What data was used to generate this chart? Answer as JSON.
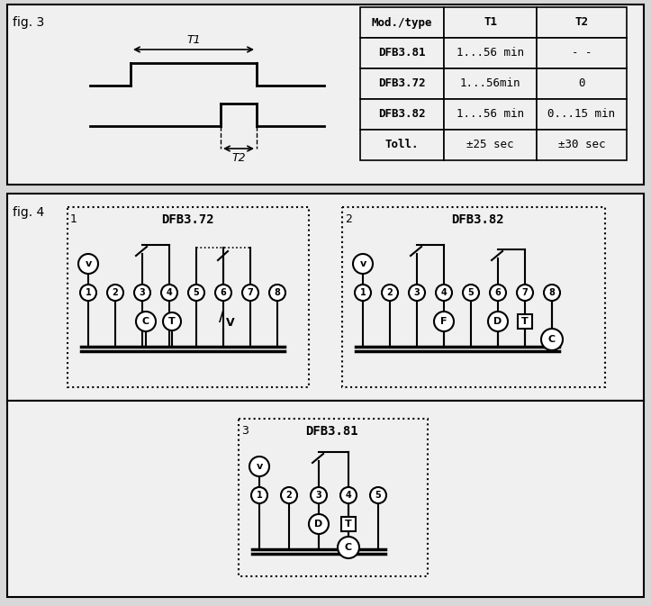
{
  "fig3_label": "fig. 3",
  "fig4_label": "fig. 4",
  "table_headers": [
    "Mod./type",
    "T1",
    "T2"
  ],
  "table_rows": [
    [
      "DFB3.81",
      "1...56 min",
      "- -"
    ],
    [
      "DFB3.72",
      "1...56min",
      "0"
    ],
    [
      "DFB3.82",
      "1...56 min",
      "0...15 min"
    ],
    [
      "Toll.",
      "±25 sec",
      "±30 sec"
    ]
  ],
  "bg_color": "#d8d8d8",
  "face_color": "#f0f0f0",
  "line_color": "#000000",
  "diagram1_label": "DFB3.72",
  "diagram2_label": "DFB3.82",
  "diagram3_label": "DFB3.81",
  "num1": "1",
  "num2": "2",
  "num3": "3"
}
